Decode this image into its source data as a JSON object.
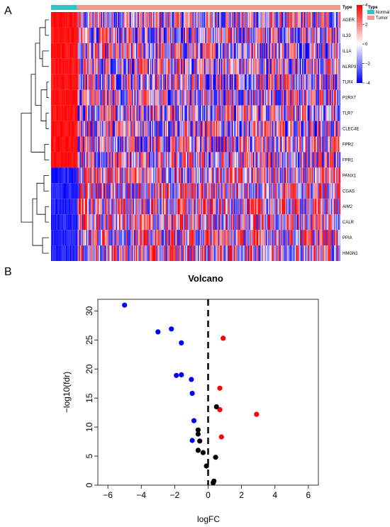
{
  "panels": {
    "a": "A",
    "b": "B"
  },
  "heatmap": {
    "genes": [
      "AGER",
      "IL33",
      "IL1A",
      "NLRP3",
      "TLR4",
      "P2RX7",
      "TLR7",
      "CLEC4E",
      "FPR2",
      "FPR1",
      "PANX1",
      "CGAS",
      "AIM2",
      "CALR",
      "PPIA",
      "HMGN1"
    ],
    "legend_title": "Type",
    "type_legend": [
      {
        "label": "Normal",
        "color": "#2cc7c9"
      },
      {
        "label": "Tumor",
        "color": "#f19a8e"
      }
    ],
    "colorbar_ticks": [
      "4",
      "2",
      "0",
      "−2",
      "−4"
    ],
    "colors": {
      "high": "#ff0000",
      "mid": "#ffffff",
      "low": "#0000ff"
    },
    "normal_fraction": 0.09
  },
  "chart_data": {
    "type": "scatter",
    "title": "Volcano",
    "xlabel": "logFC",
    "ylabel": "−log10(fdr)",
    "xlim": [
      -6.6,
      6.6
    ],
    "ylim": [
      0,
      32
    ],
    "xticks": [
      "−6",
      "−4",
      "−2",
      "0",
      "2",
      "4",
      "6"
    ],
    "yticks": [
      "0",
      "5",
      "10",
      "15",
      "20",
      "25",
      "30"
    ],
    "threshold_x": 0,
    "series": [
      {
        "color": "#0000ff",
        "points": [
          [
            -5.0,
            31.0
          ],
          [
            -3.0,
            26.4
          ],
          [
            -2.2,
            26.9
          ],
          [
            -1.6,
            24.5
          ],
          [
            -1.9,
            18.9
          ],
          [
            -1.6,
            19.0
          ],
          [
            -1.0,
            18.2
          ],
          [
            -0.95,
            15.8
          ],
          [
            -0.85,
            11.1
          ],
          [
            -0.95,
            7.7
          ]
        ]
      },
      {
        "color": "#ff0000",
        "points": [
          [
            0.9,
            25.3
          ],
          [
            0.7,
            16.7
          ],
          [
            0.7,
            13.0
          ],
          [
            2.9,
            12.2
          ],
          [
            0.8,
            8.3
          ]
        ]
      },
      {
        "color": "#000000",
        "points": [
          [
            0.5,
            13.5
          ],
          [
            -0.6,
            9.5
          ],
          [
            -0.6,
            8.8
          ],
          [
            -0.5,
            7.6
          ],
          [
            -0.6,
            6.0
          ],
          [
            -0.3,
            5.6
          ],
          [
            0.45,
            4.8
          ],
          [
            -0.1,
            3.3
          ],
          [
            0.35,
            0.7
          ],
          [
            0.3,
            0.4
          ]
        ]
      }
    ]
  }
}
